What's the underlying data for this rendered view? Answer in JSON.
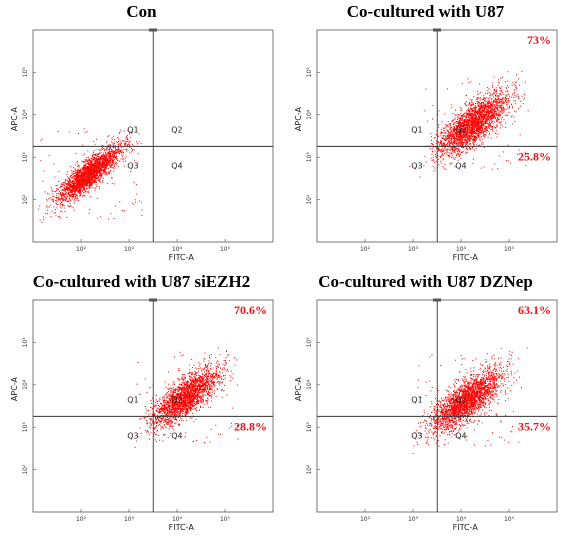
{
  "chart_data": [
    {
      "type": "scatter",
      "title": "Con",
      "xlabel": "FITC-A",
      "ylabel": "APC-A",
      "x_scale": "log",
      "y_scale": "log",
      "xlim": [
        10,
        1000000
      ],
      "ylim": [
        10,
        1000000
      ],
      "x_ticks": [
        "10²",
        "10³",
        "10⁴",
        "10⁵"
      ],
      "y_ticks": [
        "10²",
        "10³",
        "10⁴",
        "10⁵"
      ],
      "quadrant_gate": {
        "x": 3200,
        "y": 1800
      },
      "quadrant_labels": [
        "Q1",
        "Q2",
        "Q3",
        "Q4"
      ],
      "percentages": {
        "upper_right": "",
        "lower_right": ""
      },
      "cluster": {
        "center_x": 150,
        "center_y": 400,
        "spread_log": 0.32,
        "correlation": 0.85
      },
      "color": "#ff0000"
    },
    {
      "type": "scatter",
      "title": "Co-cultured with U87",
      "xlabel": "FITC-A",
      "ylabel": "APC-A",
      "x_scale": "log",
      "y_scale": "log",
      "xlim": [
        10,
        1000000
      ],
      "ylim": [
        10,
        1000000
      ],
      "x_ticks": [
        "10²",
        "10³",
        "10⁴",
        "10⁵"
      ],
      "y_ticks": [
        "10²",
        "10³",
        "10⁴",
        "10⁵"
      ],
      "quadrant_gate": {
        "x": 3200,
        "y": 1800
      },
      "quadrant_labels": [
        "Q1",
        "Q2",
        "Q3",
        "Q4"
      ],
      "percentages": {
        "upper_right": "73%",
        "lower_right": "25.8%"
      },
      "cluster": {
        "center_x": 18000,
        "center_y": 6000,
        "spread_log": 0.36,
        "correlation": 0.75
      },
      "color": "#ff0000"
    },
    {
      "type": "scatter",
      "title": "Co-cultured with U87 siEZH2",
      "xlabel": "FITC-A",
      "ylabel": "APC-A",
      "x_scale": "log",
      "y_scale": "log",
      "xlim": [
        10,
        1000000
      ],
      "ylim": [
        10,
        1000000
      ],
      "x_ticks": [
        "10²",
        "10³",
        "10⁴",
        "10⁵"
      ],
      "y_ticks": [
        "10²",
        "10³",
        "10⁴",
        "10⁵"
      ],
      "quadrant_gate": {
        "x": 3200,
        "y": 1800
      },
      "quadrant_labels": [
        "Q1",
        "Q2",
        "Q3",
        "Q4"
      ],
      "percentages": {
        "upper_right": "70.6%",
        "lower_right": "28.8%"
      },
      "cluster": {
        "center_x": 15000,
        "center_y": 5000,
        "spread_log": 0.34,
        "correlation": 0.75
      },
      "color": "#ff0000"
    },
    {
      "type": "scatter",
      "title": "Co-cultured with U87 DZNep",
      "xlabel": "FITC-A",
      "ylabel": "APC-A",
      "x_scale": "log",
      "y_scale": "log",
      "xlim": [
        10,
        1000000
      ],
      "ylim": [
        10,
        1000000
      ],
      "x_ticks": [
        "10²",
        "10³",
        "10⁴",
        "10⁵"
      ],
      "y_ticks": [
        "10²",
        "10³",
        "10⁴",
        "10⁵"
      ],
      "quadrant_gate": {
        "x": 3200,
        "y": 1800
      },
      "quadrant_labels": [
        "Q1",
        "Q2",
        "Q3",
        "Q4"
      ],
      "percentages": {
        "upper_right": "63.1%",
        "lower_right": "35.7%"
      },
      "cluster": {
        "center_x": 13000,
        "center_y": 4200,
        "spread_log": 0.36,
        "correlation": 0.75
      },
      "color": "#ff0000"
    }
  ]
}
